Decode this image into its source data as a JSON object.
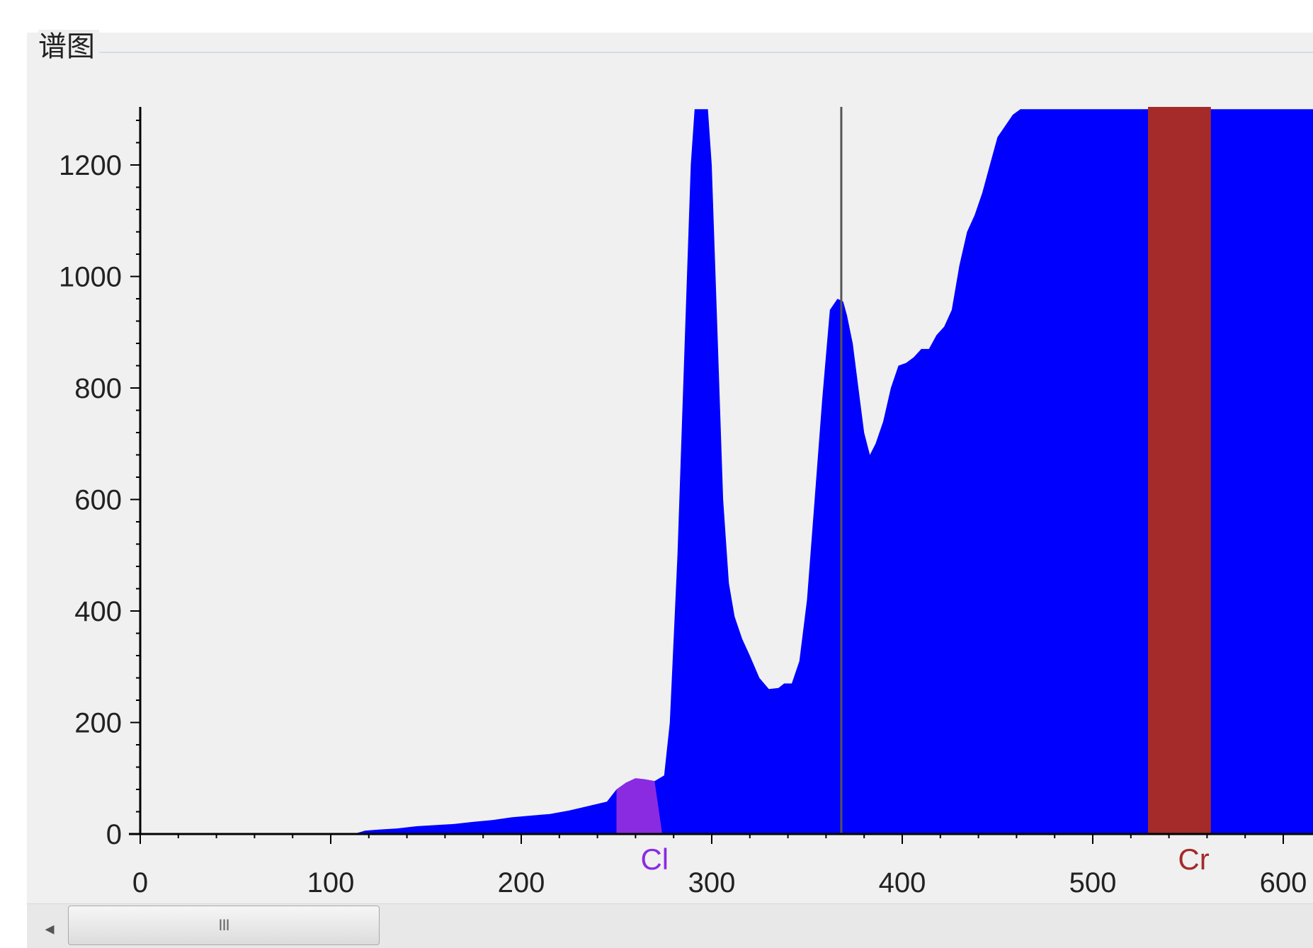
{
  "panel": {
    "title": "谱图"
  },
  "chart_data": {
    "type": "area",
    "title": "",
    "xlabel": "",
    "ylabel": "",
    "xlim": [
      0,
      620
    ],
    "ylim": [
      0,
      1300
    ],
    "x_ticks": [
      0,
      100,
      200,
      300,
      400,
      500,
      600
    ],
    "y_ticks": [
      0,
      200,
      400,
      600,
      800,
      1000,
      1200
    ],
    "grid": false,
    "series": [
      {
        "color": "#0000ff",
        "x": [
          0,
          112,
          118,
          125,
          135,
          145,
          155,
          165,
          175,
          185,
          195,
          205,
          215,
          225,
          235,
          245,
          250,
          255,
          260,
          265,
          270,
          275,
          278,
          282,
          286,
          289,
          291,
          298,
          300,
          303,
          306,
          309,
          312,
          316,
          320,
          325,
          330,
          335,
          338,
          342,
          346,
          350,
          354,
          358,
          362,
          366,
          369,
          371,
          374,
          377,
          380,
          383,
          386,
          390,
          394,
          398,
          402,
          406,
          410,
          414,
          418,
          422,
          426,
          430,
          434,
          438,
          442,
          446,
          450,
          454,
          458,
          462,
          466,
          470,
          620
        ],
        "y": [
          0,
          0,
          6,
          8,
          10,
          14,
          16,
          18,
          22,
          25,
          30,
          33,
          36,
          42,
          50,
          58,
          80,
          92,
          100,
          98,
          95,
          105,
          200,
          500,
          900,
          1200,
          1300,
          1300,
          1200,
          900,
          600,
          450,
          390,
          350,
          320,
          280,
          260,
          262,
          270,
          270,
          310,
          420,
          600,
          780,
          940,
          960,
          955,
          930,
          880,
          800,
          720,
          680,
          700,
          740,
          800,
          840,
          845,
          855,
          870,
          870,
          895,
          910,
          940,
          1020,
          1080,
          1110,
          1150,
          1200,
          1250,
          1270,
          1290,
          1300,
          1300,
          1300,
          1300
        ]
      }
    ],
    "regions": [
      {
        "label": "Cl",
        "x0": 250,
        "x1": 274,
        "color": "#8a2be2",
        "label_x": 270
      },
      {
        "label": "Cr",
        "x0": 529,
        "x1": 562,
        "color": "#a52a2a",
        "label_x": 553
      }
    ],
    "marker_line_x": 368
  },
  "scrollbar": {
    "left_arrow": "◂",
    "grip": "III"
  }
}
